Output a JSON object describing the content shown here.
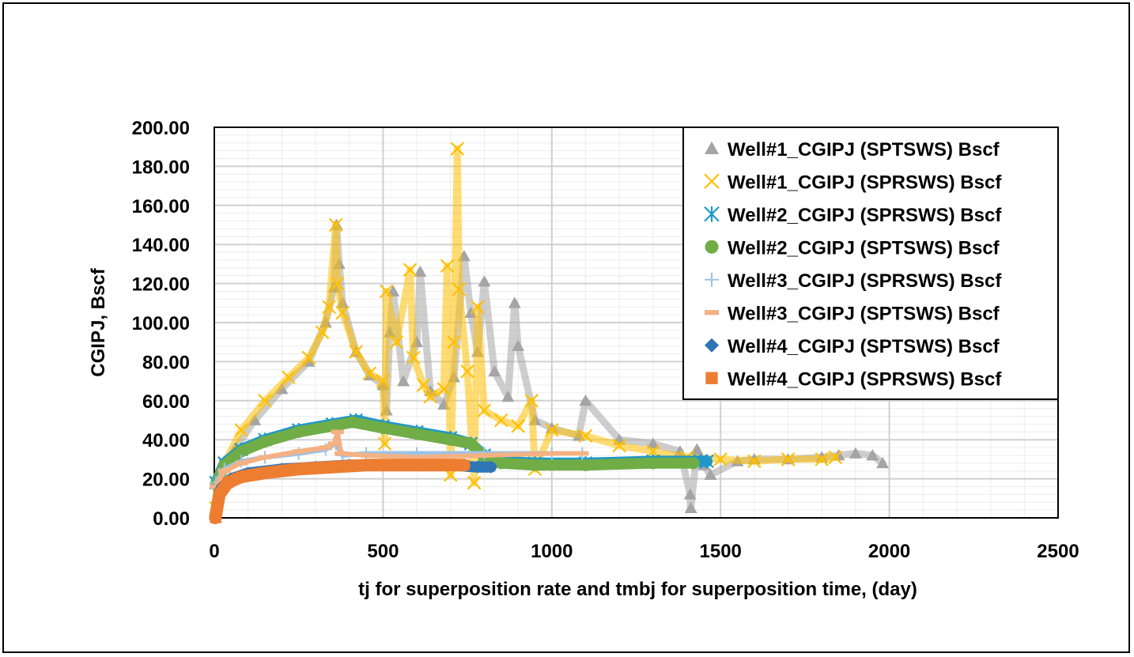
{
  "chart_data": {
    "type": "scatter",
    "xlabel": "tj for superposition rate and tmbj for superposition time, (day)",
    "ylabel": "CGIPJ, Bscf",
    "xlim": [
      0,
      2500
    ],
    "ylim": [
      0,
      200
    ],
    "x_ticks": [
      "0",
      "500",
      "1000",
      "1500",
      "2000",
      "2500"
    ],
    "y_ticks": [
      "0.00",
      "20.00",
      "40.00",
      "60.00",
      "80.00",
      "100.00",
      "120.00",
      "140.00",
      "160.00",
      "180.00",
      "200.00"
    ],
    "grid": true,
    "legend_position": "top-right",
    "series": [
      {
        "name": "Well#1_CGIPJ (SPTSWS) Bscf",
        "marker": "triangle",
        "color": "#a5a5a5",
        "points": [
          [
            5,
            0
          ],
          [
            20,
            22
          ],
          [
            60,
            35
          ],
          [
            120,
            50
          ],
          [
            200,
            66
          ],
          [
            280,
            80
          ],
          [
            330,
            100
          ],
          [
            355,
            118
          ],
          [
            362,
            150
          ],
          [
            370,
            130
          ],
          [
            380,
            110
          ],
          [
            420,
            85
          ],
          [
            460,
            73
          ],
          [
            500,
            68
          ],
          [
            510,
            55
          ],
          [
            520,
            95
          ],
          [
            530,
            116
          ],
          [
            560,
            70
          ],
          [
            600,
            90
          ],
          [
            610,
            126
          ],
          [
            640,
            65
          ],
          [
            680,
            58
          ],
          [
            710,
            72
          ],
          [
            740,
            134
          ],
          [
            760,
            105
          ],
          [
            780,
            85
          ],
          [
            800,
            121
          ],
          [
            830,
            75
          ],
          [
            870,
            62
          ],
          [
            890,
            110
          ],
          [
            900,
            88
          ],
          [
            950,
            50
          ],
          [
            1000,
            46
          ],
          [
            1080,
            42
          ],
          [
            1100,
            60
          ],
          [
            1200,
            40
          ],
          [
            1300,
            38
          ],
          [
            1380,
            34
          ],
          [
            1410,
            12
          ],
          [
            1412,
            5
          ],
          [
            1430,
            35
          ],
          [
            1450,
            27
          ],
          [
            1470,
            22
          ],
          [
            1550,
            29
          ],
          [
            1600,
            30
          ],
          [
            1700,
            30
          ],
          [
            1800,
            31
          ],
          [
            1850,
            32
          ],
          [
            1900,
            33
          ],
          [
            1950,
            32
          ],
          [
            1980,
            28
          ]
        ]
      },
      {
        "name": "Well#1_CGIPJ (SPRSWS) Bscf",
        "marker": "x",
        "color": "#ffc000",
        "points": [
          [
            5,
            5
          ],
          [
            30,
            28
          ],
          [
            80,
            45
          ],
          [
            150,
            60
          ],
          [
            220,
            72
          ],
          [
            280,
            82
          ],
          [
            320,
            95
          ],
          [
            340,
            108
          ],
          [
            360,
            150
          ],
          [
            365,
            120
          ],
          [
            380,
            105
          ],
          [
            420,
            85
          ],
          [
            460,
            74
          ],
          [
            500,
            70
          ],
          [
            505,
            38
          ],
          [
            510,
            116
          ],
          [
            540,
            90
          ],
          [
            580,
            127
          ],
          [
            590,
            82
          ],
          [
            620,
            68
          ],
          [
            640,
            62
          ],
          [
            680,
            66
          ],
          [
            690,
            129
          ],
          [
            700,
            22
          ],
          [
            710,
            90
          ],
          [
            720,
            189
          ],
          [
            725,
            117
          ],
          [
            750,
            75
          ],
          [
            770,
            18
          ],
          [
            780,
            108
          ],
          [
            800,
            55
          ],
          [
            850,
            50
          ],
          [
            900,
            47
          ],
          [
            940,
            60
          ],
          [
            950,
            25
          ],
          [
            1000,
            45
          ],
          [
            1100,
            42
          ],
          [
            1200,
            37
          ],
          [
            1300,
            34
          ],
          [
            1400,
            31
          ],
          [
            1500,
            30
          ],
          [
            1600,
            29
          ],
          [
            1700,
            30
          ],
          [
            1800,
            30
          ],
          [
            1840,
            31
          ]
        ]
      },
      {
        "name": "Well#2_CGIPJ (SPRSWS) Bscf",
        "marker": "asterisk",
        "color": "#1f97c9",
        "points": [
          [
            5,
            18
          ],
          [
            30,
            28
          ],
          [
            80,
            35
          ],
          [
            150,
            40
          ],
          [
            250,
            45
          ],
          [
            350,
            48
          ],
          [
            420,
            50
          ],
          [
            500,
            47
          ],
          [
            600,
            44
          ],
          [
            700,
            41
          ],
          [
            760,
            38
          ],
          [
            800,
            32
          ],
          [
            850,
            29
          ],
          [
            950,
            28
          ],
          [
            1100,
            28
          ],
          [
            1300,
            29
          ],
          [
            1440,
            29
          ],
          [
            1460,
            29
          ]
        ]
      },
      {
        "name": "Well#2_CGIPJ (SPTSWS) Bscf",
        "marker": "circle",
        "color": "#70ad47",
        "points": [
          [
            5,
            17
          ],
          [
            30,
            27
          ],
          [
            80,
            34
          ],
          [
            150,
            39
          ],
          [
            250,
            44
          ],
          [
            350,
            47
          ],
          [
            410,
            49
          ],
          [
            500,
            46
          ],
          [
            600,
            43
          ],
          [
            700,
            40
          ],
          [
            760,
            38
          ],
          [
            800,
            31
          ],
          [
            850,
            28
          ],
          [
            950,
            27
          ],
          [
            1100,
            27
          ],
          [
            1300,
            28
          ],
          [
            1420,
            28
          ]
        ]
      },
      {
        "name": "Well#3_CGIPJ (SPRSWS) Bscf",
        "marker": "plus",
        "color": "#9dc3e6",
        "points": [
          [
            5,
            18
          ],
          [
            30,
            25
          ],
          [
            80,
            29
          ],
          [
            150,
            31
          ],
          [
            250,
            33
          ],
          [
            330,
            35
          ],
          [
            360,
            38
          ],
          [
            380,
            32
          ],
          [
            450,
            33
          ],
          [
            600,
            33
          ],
          [
            800,
            33
          ],
          [
            1000,
            33
          ],
          [
            1090,
            33
          ]
        ]
      },
      {
        "name": "Well#3_CGIPJ (SPTSWS) Bscf",
        "marker": "dash",
        "color": "#f4b183",
        "points": [
          [
            5,
            16
          ],
          [
            30,
            24
          ],
          [
            80,
            28
          ],
          [
            150,
            31
          ],
          [
            250,
            34
          ],
          [
            330,
            36
          ],
          [
            355,
            38
          ],
          [
            365,
            44
          ],
          [
            375,
            33
          ],
          [
            450,
            32
          ],
          [
            600,
            31
          ],
          [
            800,
            32
          ],
          [
            1000,
            33
          ],
          [
            1090,
            33
          ]
        ]
      },
      {
        "name": "Well#4_CGIPJ (SPTSWS) Bscf",
        "marker": "diamond",
        "color": "#2e75b6",
        "points": [
          [
            5,
            2
          ],
          [
            20,
            15
          ],
          [
            50,
            20
          ],
          [
            100,
            23
          ],
          [
            200,
            25
          ],
          [
            300,
            26
          ],
          [
            400,
            27
          ],
          [
            500,
            27
          ],
          [
            600,
            27
          ],
          [
            700,
            27
          ],
          [
            780,
            26
          ],
          [
            820,
            26
          ]
        ]
      },
      {
        "name": "Well#4_CGIPJ (SPRSWS) Bscf",
        "marker": "square",
        "color": "#ed7d31",
        "points": [
          [
            3,
            0
          ],
          [
            15,
            12
          ],
          [
            40,
            18
          ],
          [
            80,
            21
          ],
          [
            150,
            23
          ],
          [
            250,
            25
          ],
          [
            350,
            26
          ],
          [
            450,
            27
          ],
          [
            550,
            27
          ],
          [
            650,
            27
          ],
          [
            740,
            27
          ]
        ]
      }
    ]
  }
}
